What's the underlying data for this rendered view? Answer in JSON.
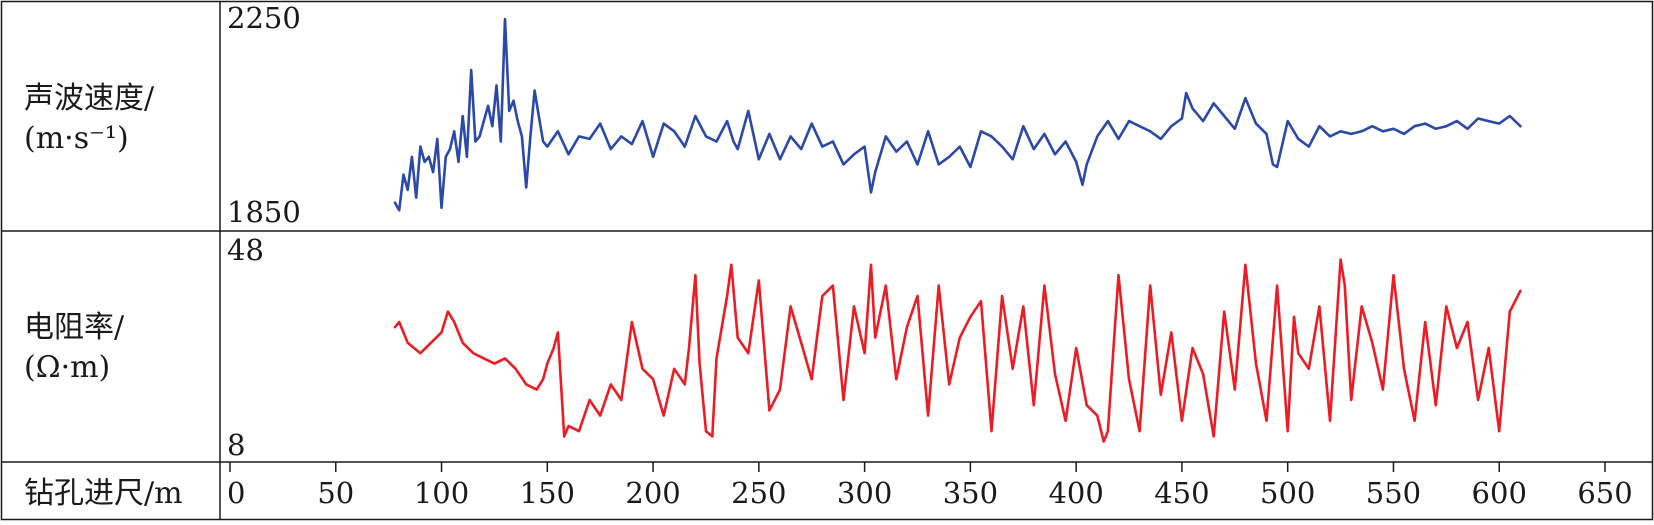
{
  "chart_data": {
    "type": "line",
    "x_axis": {
      "label": "钻孔进尺/m",
      "range": [
        0,
        650
      ],
      "ticks": [
        0,
        50,
        100,
        150,
        200,
        250,
        300,
        350,
        400,
        450,
        500,
        550,
        600,
        650
      ]
    },
    "panels": [
      {
        "id": "velocity",
        "label_line1": "声波速度/",
        "label_line2": "(m·s⁻¹)",
        "ylim": [
          1850,
          2250
        ],
        "y_top_label": "2250",
        "y_bottom_label": "1850",
        "color": "#2b49a8",
        "x": [
          78,
          80,
          82,
          84,
          86,
          88,
          90,
          92,
          94,
          96,
          98,
          100,
          102,
          104,
          106,
          108,
          110,
          112,
          114,
          116,
          118,
          120,
          122,
          124,
          126,
          128,
          130,
          132,
          134,
          136,
          138,
          140,
          142,
          144,
          146,
          148,
          150,
          155,
          160,
          165,
          170,
          175,
          180,
          185,
          190,
          195,
          200,
          205,
          210,
          215,
          220,
          225,
          230,
          235,
          238,
          240,
          245,
          250,
          255,
          260,
          265,
          270,
          275,
          280,
          285,
          290,
          295,
          300,
          303,
          305,
          310,
          315,
          320,
          325,
          330,
          335,
          340,
          345,
          350,
          355,
          360,
          365,
          370,
          375,
          380,
          385,
          390,
          395,
          400,
          403,
          405,
          410,
          415,
          420,
          425,
          430,
          435,
          440,
          445,
          450,
          452,
          455,
          460,
          465,
          470,
          475,
          480,
          485,
          490,
          493,
          495,
          500,
          505,
          510,
          515,
          520,
          525,
          530,
          535,
          540,
          545,
          550,
          555,
          560,
          565,
          570,
          575,
          580,
          585,
          590,
          595,
          600,
          605,
          610
        ],
        "y": [
          1880,
          1865,
          1935,
          1905,
          1970,
          1890,
          1990,
          1960,
          1970,
          1940,
          2005,
          1870,
          1970,
          1985,
          2020,
          1960,
          2050,
          1970,
          2140,
          2000,
          2010,
          2040,
          2070,
          2030,
          2110,
          2000,
          2240,
          2060,
          2080,
          2040,
          2010,
          1910,
          2010,
          2100,
          2050,
          2000,
          1990,
          2020,
          1975,
          2010,
          2005,
          2035,
          1985,
          2010,
          1995,
          2040,
          1970,
          2035,
          2020,
          1990,
          2050,
          2010,
          2000,
          2040,
          2000,
          1985,
          2060,
          1965,
          2015,
          1965,
          2010,
          1985,
          2035,
          1990,
          2000,
          1955,
          1975,
          1990,
          1900,
          1940,
          2010,
          1980,
          2000,
          1955,
          2020,
          1955,
          1970,
          1990,
          1950,
          2020,
          2010,
          1990,
          1965,
          2030,
          1985,
          2015,
          1975,
          2000,
          1960,
          1915,
          1955,
          2010,
          2040,
          2005,
          2040,
          2030,
          2020,
          2005,
          2030,
          2045,
          2095,
          2065,
          2040,
          2075,
          2050,
          2025,
          2085,
          2035,
          2015,
          1955,
          1950,
          2040,
          2005,
          1990,
          2030,
          2010,
          2020,
          2015,
          2020,
          2030,
          2020,
          2025,
          2015,
          2030,
          2035,
          2025,
          2030,
          2040,
          2025,
          2045,
          2040,
          2035,
          2050,
          2030
        ]
      },
      {
        "id": "resistivity",
        "label_line1": "电阻率/",
        "label_line2": "(Ω·m)",
        "ylim": [
          8,
          48
        ],
        "y_top_label": "48",
        "y_bottom_label": "8",
        "color": "#ec1c24",
        "x": [
          78,
          80,
          84,
          90,
          95,
          100,
          103,
          106,
          110,
          115,
          120,
          125,
          130,
          135,
          140,
          145,
          148,
          150,
          153,
          155,
          158,
          160,
          165,
          170,
          175,
          180,
          185,
          190,
          195,
          200,
          205,
          210,
          215,
          217,
          220,
          222,
          225,
          228,
          230,
          235,
          237,
          240,
          245,
          250,
          255,
          260,
          265,
          270,
          275,
          280,
          285,
          290,
          295,
          300,
          303,
          305,
          310,
          315,
          320,
          325,
          330,
          335,
          340,
          345,
          350,
          355,
          360,
          365,
          370,
          375,
          380,
          385,
          390,
          395,
          400,
          405,
          410,
          413,
          415,
          418,
          420,
          425,
          430,
          435,
          440,
          445,
          450,
          455,
          460,
          465,
          470,
          475,
          480,
          485,
          490,
          495,
          500,
          503,
          505,
          510,
          515,
          520,
          525,
          527,
          530,
          535,
          540,
          545,
          550,
          555,
          560,
          565,
          570,
          575,
          580,
          585,
          590,
          595,
          600,
          605,
          610
        ],
        "y": [
          32,
          33,
          29,
          27,
          29,
          31,
          35,
          33,
          29,
          27,
          26,
          25,
          26,
          24,
          21,
          20,
          22,
          25,
          28,
          31,
          11,
          13,
          12,
          18,
          15,
          21,
          18,
          33,
          24,
          22,
          15,
          24,
          21,
          28,
          42,
          25,
          12,
          11,
          26,
          38,
          44,
          30,
          27,
          41,
          16,
          20,
          36,
          29,
          22,
          38,
          40,
          18,
          36,
          27,
          44,
          30,
          40,
          22,
          32,
          38,
          15,
          40,
          21,
          30,
          34,
          37,
          12,
          38,
          24,
          36,
          17,
          40,
          23,
          14,
          28,
          17,
          15,
          10,
          12,
          30,
          42,
          22,
          12,
          40,
          19,
          31,
          14,
          28,
          23,
          11,
          35,
          20,
          44,
          25,
          14,
          40,
          12,
          34,
          27,
          24,
          36,
          14,
          45,
          40,
          18,
          36,
          29,
          20,
          42,
          24,
          14,
          33,
          17,
          36,
          28,
          33,
          18,
          28,
          12,
          35,
          39
        ]
      }
    ]
  }
}
